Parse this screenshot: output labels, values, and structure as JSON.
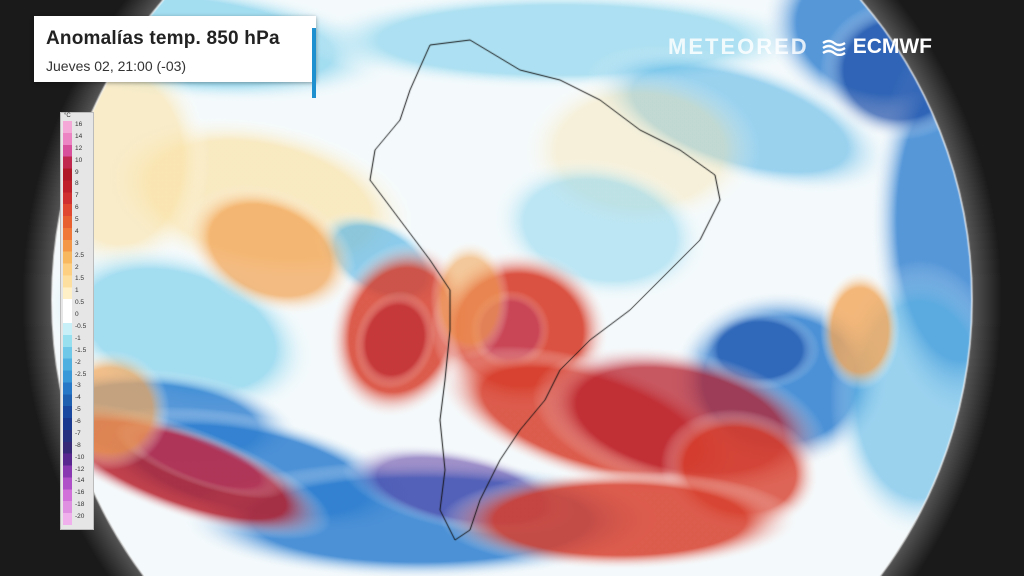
{
  "header": {
    "title": "Anomalías temp. 850 hPa",
    "subtitle": "Jueves 02, 21:00 (-03)"
  },
  "branding": {
    "meteored": "METEORED",
    "ecmwf": "ECMWF",
    "icon": "ecmwf-wave-icon"
  },
  "legend": {
    "unit": "°C",
    "levels": [
      "16",
      "14",
      "12",
      "10",
      "9",
      "8",
      "7",
      "6",
      "5",
      "4",
      "3",
      "2.5",
      "2",
      "1.5",
      "1",
      "0.5",
      "0",
      "-0.5",
      "-1",
      "-1.5",
      "-2",
      "-2.5",
      "-3",
      "-4",
      "-5",
      "-6",
      "-7",
      "-8",
      "-10",
      "-12",
      "-14",
      "-16",
      "-18",
      "-20"
    ],
    "colors": [
      "#f4a8d8",
      "#ec84c4",
      "#d8509c",
      "#c02850",
      "#b01828",
      "#c0202a",
      "#d03030",
      "#e04830",
      "#e86030",
      "#f07838",
      "#f49848",
      "#f8b860",
      "#fcd080",
      "#fde0a0",
      "#fff0c8",
      "#ffffff",
      "#ffffff",
      "#c8f0f8",
      "#98e0f0",
      "#70c8e8",
      "#50b0e0",
      "#3898d8",
      "#2878c8",
      "#2060b0",
      "#1848a0",
      "#183890",
      "#283080",
      "#382878",
      "#582890",
      "#8838b0",
      "#b050c8",
      "#d070d8",
      "#e090e0",
      "#f0b0ec"
    ]
  },
  "map": {
    "type": "temperature-anomaly",
    "region": "South America"
  }
}
